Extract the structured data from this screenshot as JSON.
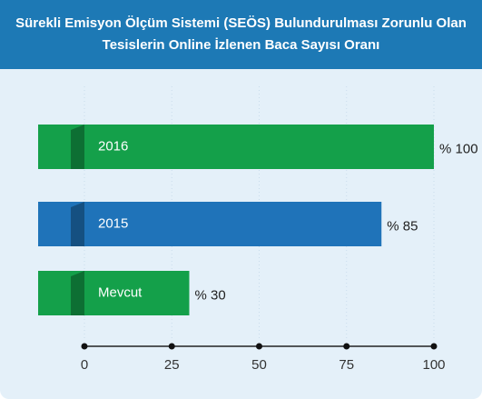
{
  "chart_data": {
    "type": "hbar",
    "title": "Sürekli Emisyon Ölçüm Sistemi (SEÖS) Bulundurulması Zorunlu Olan Tesislerin Online İzlenen Baca Sayısı Oranı",
    "categories": [
      "2016",
      "2015",
      "Mevcut"
    ],
    "values": [
      100,
      85,
      30
    ],
    "value_labels": [
      "% 100",
      "% 85",
      "% 30"
    ],
    "colors": [
      "#14a04a",
      "#1f73b9",
      "#14a04a"
    ],
    "xlim": [
      0,
      100
    ],
    "xticks": [
      0,
      25,
      50,
      75,
      100
    ],
    "grid": true
  }
}
